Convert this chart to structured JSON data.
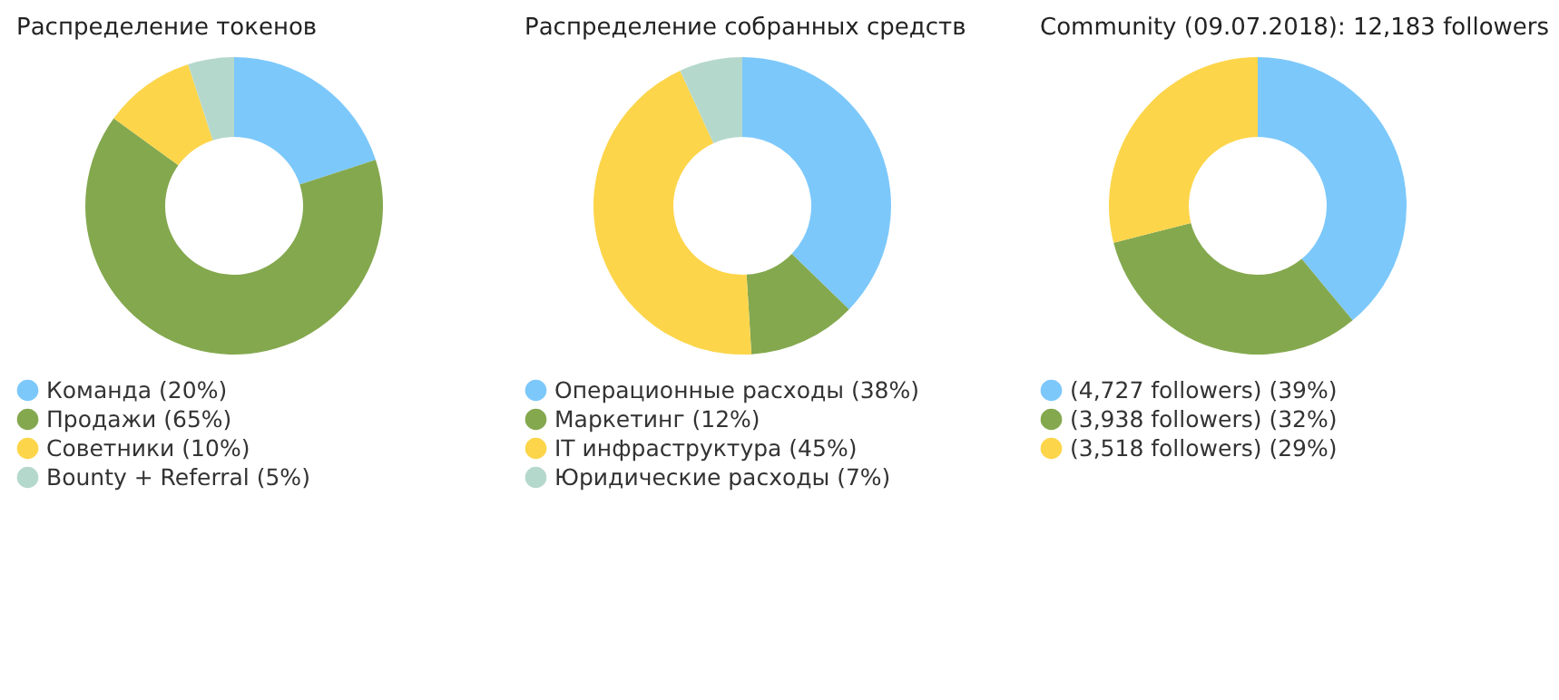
{
  "chart_data": [
    {
      "type": "donut",
      "title": "Распределение токенов",
      "categories": [
        "Команда (20%)",
        "Продажи (65%)",
        "Советники (10%)",
        "Bounty + Referral (5%)"
      ],
      "values": [
        20,
        65,
        10,
        5
      ],
      "colors": [
        "#7cc8fb",
        "#84a84e",
        "#fdd54a",
        "#b5d8cc"
      ],
      "legend": "bottom"
    },
    {
      "type": "donut",
      "title": "Распределение собранных средств",
      "categories": [
        "Операционные расходы (38%)",
        "Маркетинг (12%)",
        "IT инфраструктура (45%)",
        "Юридические расходы (7%)"
      ],
      "values": [
        38,
        12,
        45,
        7
      ],
      "colors": [
        "#7cc8fb",
        "#84a84e",
        "#fdd54a",
        "#b5d8cc"
      ],
      "legend": "bottom"
    },
    {
      "type": "donut",
      "title": "Community (09.07.2018): 12,183 followers",
      "categories": [
        "(4,727 followers) (39%)",
        "(3,938 followers) (32%)",
        "(3,518 followers) (29%)"
      ],
      "values": [
        39,
        32,
        29
      ],
      "colors": [
        "#7cc8fb",
        "#84a84e",
        "#fdd54a"
      ],
      "legend": "bottom"
    }
  ]
}
